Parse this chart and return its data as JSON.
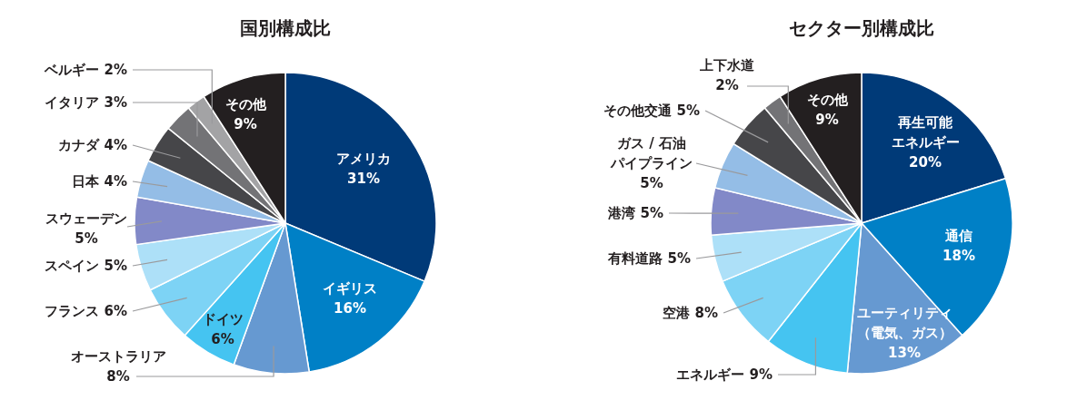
{
  "chart_data": [
    {
      "type": "pie",
      "title": "国別構成比",
      "categories": [
        "アメリカ",
        "イギリス",
        "オーストラリア",
        "ドイツ",
        "フランス",
        "スペイン",
        "スウェーデン",
        "日本",
        "カナダ",
        "イタリア",
        "ベルギー",
        "その他"
      ],
      "values": [
        31,
        16,
        8,
        6,
        6,
        5,
        5,
        4,
        4,
        3,
        2,
        9
      ],
      "value_labels": [
        "31%",
        "16%",
        "8%",
        "6%",
        "6%",
        "5%",
        "5%",
        "4%",
        "4%",
        "3%",
        "2%",
        "9%"
      ],
      "colors": [
        "#003a78",
        "#0080c6",
        "#6699d1",
        "#45c4f1",
        "#7dd3f5",
        "#ade0f8",
        "#8289c8",
        "#94bde6",
        "#464649",
        "#737376",
        "#a3a3a5",
        "#231f20"
      ]
    },
    {
      "type": "pie",
      "title": "セクター別構成比",
      "categories": [
        "再生可能エネルギー",
        "通信",
        "ユーティリティ（電気、ガス）",
        "エネルギー",
        "空港",
        "有料道路",
        "港湾",
        "ガス / 石油パイプライン",
        "その他交通",
        "上下水道",
        "その他"
      ],
      "values": [
        20,
        18,
        13,
        9,
        8,
        5,
        5,
        5,
        5,
        2,
        9
      ],
      "value_labels": [
        "20%",
        "18%",
        "13%",
        "9%",
        "8%",
        "5%",
        "5%",
        "5%",
        "5%",
        "2%",
        "9%"
      ],
      "colors": [
        "#003a78",
        "#0080c6",
        "#6699d1",
        "#45c4f1",
        "#7dd3f5",
        "#ade0f8",
        "#8289c8",
        "#94bde6",
        "#464649",
        "#737376",
        "#231f20"
      ]
    }
  ]
}
